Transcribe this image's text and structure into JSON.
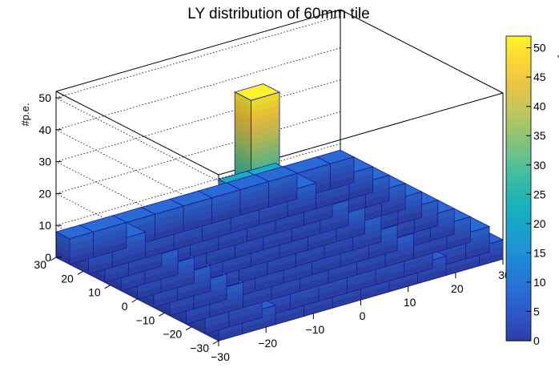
{
  "chart_data": {
    "type": "lego3d",
    "title": "LY distribution of 60mm tile",
    "zlabel": "#p.e.",
    "xlim": [
      -30,
      30
    ],
    "ylim": [
      -30,
      30
    ],
    "zlim": [
      0,
      52
    ],
    "x_ticks": [
      -30,
      -20,
      -10,
      0,
      10,
      20,
      30
    ],
    "y_ticks": [
      -30,
      -20,
      -10,
      0,
      10,
      20,
      30
    ],
    "z_ticks": [
      0,
      10,
      20,
      30,
      40,
      50
    ],
    "x_tick_labels": [
      "−30",
      "−20",
      "−10",
      "0",
      "10",
      "20",
      "30"
    ],
    "y_tick_labels": [
      "−30",
      "−20",
      "−10",
      "0",
      "10",
      "20",
      "30"
    ],
    "z_tick_labels": [
      "0",
      "10",
      "20",
      "30",
      "40",
      "50"
    ],
    "palette_ticks": [
      0,
      5,
      10,
      15,
      20,
      25,
      30,
      35,
      40,
      45,
      50
    ],
    "palette_tick_labels": [
      "0",
      "5",
      "10",
      "15",
      "20",
      "25",
      "30",
      "35",
      "40",
      "45",
      "50"
    ],
    "x_bin_edges": [
      -30,
      -25,
      -18,
      -12,
      -6,
      0,
      6,
      12,
      18,
      25,
      30
    ],
    "y_bin_edges": [
      -30,
      -25,
      -18,
      -12,
      -6,
      0,
      6,
      12,
      18,
      25,
      30
    ],
    "values_by_row_y_low_to_high": [
      [
        6,
        6,
        6,
        6,
        6,
        6,
        6,
        6,
        6,
        6
      ],
      [
        8,
        8,
        8,
        8,
        8,
        8,
        8,
        8,
        8,
        8
      ],
      [
        8,
        8,
        8,
        8,
        8,
        8,
        8,
        8,
        8,
        8
      ],
      [
        8,
        8,
        8,
        8,
        8,
        11,
        8,
        8,
        8,
        8
      ],
      [
        8,
        8,
        8,
        11,
        16,
        22,
        15,
        10,
        8,
        8
      ],
      [
        8,
        8,
        11,
        18,
        52,
        22,
        15,
        10,
        8,
        8
      ],
      [
        8,
        8,
        10,
        15,
        22,
        22,
        14,
        8,
        8,
        8
      ],
      [
        8,
        8,
        8,
        10,
        12,
        12,
        8,
        8,
        8,
        8
      ],
      [
        8,
        8,
        8,
        8,
        8,
        8,
        8,
        8,
        8,
        8
      ],
      [
        8,
        8,
        8,
        8,
        8,
        8,
        8,
        8,
        8,
        8
      ]
    ],
    "grid": true,
    "palette": [
      "#2c3ea6",
      "#2e53c4",
      "#2a6ad4",
      "#237fd8",
      "#1e93d3",
      "#17a6c6",
      "#1bb4b6",
      "#3dbca3",
      "#6cc288",
      "#9bc46e",
      "#c8c658",
      "#ecc446",
      "#fdd835",
      "#fef22c"
    ]
  }
}
